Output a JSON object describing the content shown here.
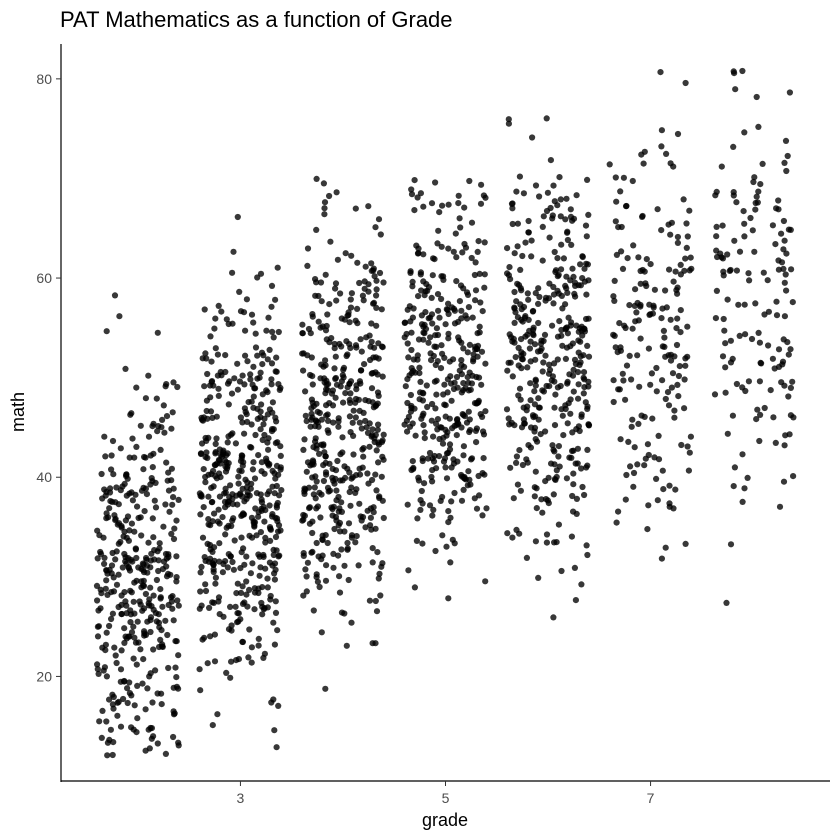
{
  "chart_data": {
    "type": "scatter",
    "title": "PAT Mathematics as a function of Grade",
    "xlabel": "grade",
    "ylabel": "math",
    "x_ticks": [
      3,
      5,
      7
    ],
    "y_ticks": [
      20,
      40,
      60,
      80
    ],
    "xlim": [
      1.25,
      8.75
    ],
    "ylim": [
      9.5,
      83.5
    ],
    "grid": false,
    "legend": "none",
    "point_color": "#000000",
    "jitter": true,
    "groups": [
      {
        "grade": 2,
        "count": 380,
        "mean": 30.5,
        "sd": 9.5,
        "min": 12,
        "max": 60
      },
      {
        "grade": 3,
        "count": 470,
        "mean": 39.5,
        "sd": 9.5,
        "min": 12.5,
        "max": 67
      },
      {
        "grade": 4,
        "count": 430,
        "mean": 45.0,
        "sd": 9.5,
        "min": 18.5,
        "max": 70
      },
      {
        "grade": 5,
        "count": 370,
        "mean": 49.5,
        "sd": 9.0,
        "min": 23,
        "max": 70
      },
      {
        "grade": 6,
        "count": 380,
        "mean": 52.5,
        "sd": 9.0,
        "min": 24,
        "max": 78
      },
      {
        "grade": 7,
        "count": 190,
        "mean": 55.0,
        "sd": 10.0,
        "min": 31,
        "max": 81
      },
      {
        "grade": 8,
        "count": 150,
        "mean": 58.0,
        "sd": 11.0,
        "min": 26,
        "max": 81.5
      }
    ]
  }
}
